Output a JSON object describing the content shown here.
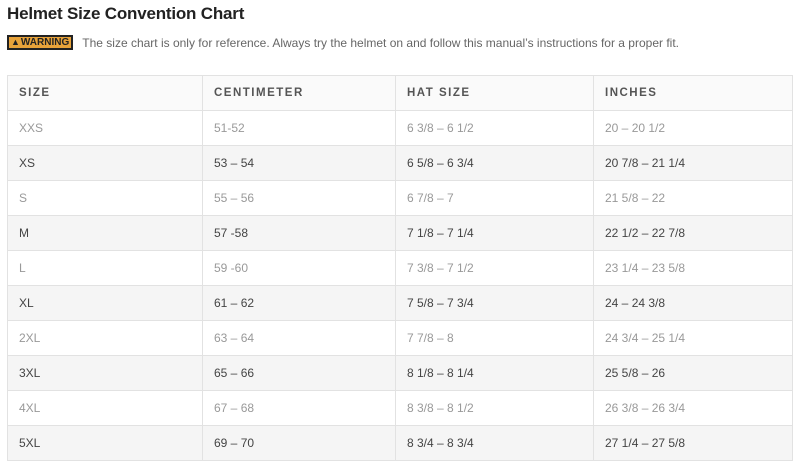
{
  "title": "Helmet Size Convention Chart",
  "warning": {
    "badge": "WARNING",
    "icon": "warning-triangle-icon",
    "text": "The size chart is only for reference. Always try the helmet on and follow this manual’s instructions for a proper fit."
  },
  "table": {
    "headers": [
      "SIZE",
      "CENTIMETER",
      "HAT SIZE",
      "INCHES"
    ],
    "rows": [
      [
        "XXS",
        "51-52",
        "6 3/8 – 6 1/2",
        "20 – 20 1/2"
      ],
      [
        "XS",
        "53 – 54",
        "6 5/8 – 6 3/4",
        "20 7/8 – 21 1/4"
      ],
      [
        "S",
        "55 – 56",
        "6 7/8 – 7",
        "21 5/8 – 22"
      ],
      [
        "M",
        "57 -58",
        "7 1/8 – 7 1/4",
        "22 1/2 – 22 7/8"
      ],
      [
        "L",
        "59 -60",
        "7 3/8 – 7 1/2",
        "23 1/4 – 23 5/8"
      ],
      [
        "XL",
        "61 – 62",
        "7 5/8 – 7 3/4",
        "24 – 24 3/8"
      ],
      [
        "2XL",
        "63 – 64",
        "7 7/8 – 8",
        "24 3/4 – 25 1/4"
      ],
      [
        "3XL",
        "65 – 66",
        "8 1/8 – 8 1/4",
        "25 5/8 – 26"
      ],
      [
        "4XL",
        "67 – 68",
        "8 3/8 – 8 1/2",
        "26 3/8 – 26 3/4"
      ],
      [
        "5XL",
        "69 – 70",
        "8 3/4 – 8 3/4",
        "27 1/4 – 27 5/8"
      ]
    ]
  }
}
